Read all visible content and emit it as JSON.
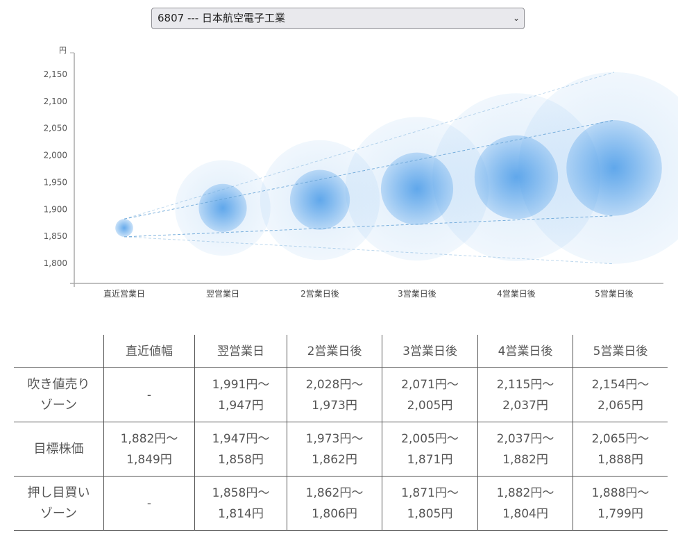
{
  "selector": {
    "value": "6807 --- 日本航空電子工業"
  },
  "chart_data": {
    "type": "bubble",
    "y_unit": "円",
    "ylim": [
      1762,
      2190
    ],
    "yticks": [
      1800,
      1850,
      1900,
      1950,
      2000,
      2050,
      2100,
      2150
    ],
    "ytick_labels": [
      "1,800",
      "1,850",
      "1,900",
      "1,950",
      "2,000",
      "2,050",
      "2,100",
      "2,150"
    ],
    "categories": [
      "直近営業日",
      "翌営業日",
      "2営業日後",
      "3営業日後",
      "4営業日後",
      "5営業日後"
    ],
    "target_high": [
      1882,
      1947,
      1973,
      2005,
      2037,
      2065
    ],
    "target_low": [
      1849,
      1858,
      1862,
      1871,
      1882,
      1888
    ],
    "sell_high": [
      null,
      1991,
      2028,
      2071,
      2115,
      2154
    ],
    "buy_low": [
      null,
      1814,
      1806,
      1805,
      1804,
      1799
    ],
    "colors": {
      "bubble": "#4a9be8",
      "line": "#6aa6d8"
    }
  },
  "table": {
    "headers": [
      "",
      "直近値幅",
      "翌営業日",
      "2営業日後",
      "3営業日後",
      "4営業日後",
      "5営業日後"
    ],
    "rows": [
      {
        "label": [
          "吹き値売り",
          "ゾーン"
        ],
        "cells": [
          [
            "-"
          ],
          [
            "1,991円～",
            "1,947円"
          ],
          [
            "2,028円～",
            "1,973円"
          ],
          [
            "2,071円～",
            "2,005円"
          ],
          [
            "2,115円～",
            "2,037円"
          ],
          [
            "2,154円～",
            "2,065円"
          ]
        ]
      },
      {
        "label": [
          "目標株価"
        ],
        "cells": [
          [
            "1,882円～",
            "1,849円"
          ],
          [
            "1,947円～",
            "1,858円"
          ],
          [
            "1,973円～",
            "1,862円"
          ],
          [
            "2,005円～",
            "1,871円"
          ],
          [
            "2,037円～",
            "1,882円"
          ],
          [
            "2,065円～",
            "1,888円"
          ]
        ]
      },
      {
        "label": [
          "押し目買い",
          "ゾーン"
        ],
        "cells": [
          [
            "-"
          ],
          [
            "1,858円～",
            "1,814円"
          ],
          [
            "1,862円～",
            "1,806円"
          ],
          [
            "1,871円～",
            "1,805円"
          ],
          [
            "1,882円～",
            "1,804円"
          ],
          [
            "1,888円～",
            "1,799円"
          ]
        ]
      }
    ]
  }
}
